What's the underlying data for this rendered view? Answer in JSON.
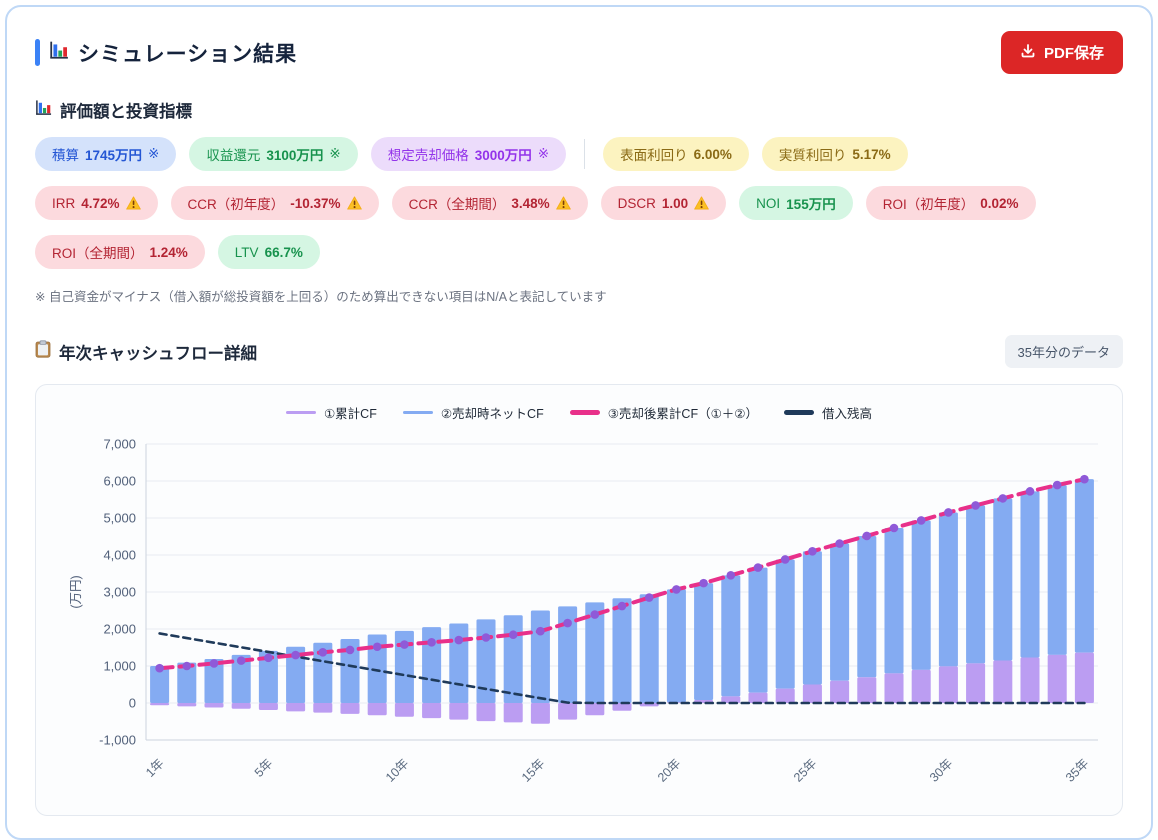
{
  "header": {
    "title": "シミュレーション結果",
    "pdf_button_label": "PDF保存"
  },
  "metrics": {
    "heading": "評価額と投資指標",
    "row1_left": [
      {
        "label": "積算",
        "value": "1745万円",
        "suffix": "※",
        "color": "blue"
      },
      {
        "label": "収益還元",
        "value": "3100万円",
        "suffix": "※",
        "color": "green"
      },
      {
        "label": "想定売却価格",
        "value": "3000万円",
        "suffix": "※",
        "color": "purple"
      }
    ],
    "row1_right": [
      {
        "label": "表面利回り",
        "value": "6.00%",
        "color": "yellow"
      },
      {
        "label": "実質利回り",
        "value": "5.17%",
        "color": "yellow"
      }
    ],
    "row2": [
      {
        "label": "IRR",
        "value": "4.72%",
        "warn": true,
        "color": "red"
      },
      {
        "label": "CCR（初年度）",
        "value": "-10.37%",
        "warn": true,
        "color": "red"
      },
      {
        "label": "CCR（全期間）",
        "value": "3.48%",
        "warn": true,
        "color": "red"
      },
      {
        "label": "DSCR",
        "value": "1.00",
        "warn": true,
        "color": "red"
      },
      {
        "label": "NOI",
        "value": "155万円",
        "color": "green"
      },
      {
        "label": "ROI（初年度）",
        "value": "0.02%",
        "color": "red"
      }
    ],
    "row3": [
      {
        "label": "ROI（全期間）",
        "value": "1.24%",
        "color": "red"
      },
      {
        "label": "LTV",
        "value": "66.7%",
        "color": "green"
      }
    ],
    "note": "※ 自己資金がマイナス（借入額が総投資額を上回る）のため算出できない項目はN/Aと表記しています"
  },
  "cashflow": {
    "heading": "年次キャッシュフロー詳細",
    "chip": "35年分のデータ"
  },
  "chart_data": {
    "type": "bar",
    "subtype": "stacked-bars-with-lines",
    "unit_label": "(万円)",
    "years": 35,
    "ylim": [
      -1000,
      7000
    ],
    "y_ticks": [
      -1000,
      0,
      1000,
      2000,
      3000,
      4000,
      5000,
      6000,
      7000
    ],
    "x_tick_years": [
      1,
      5,
      10,
      15,
      20,
      25,
      30,
      35
    ],
    "x_tick_labels": [
      "1年",
      "5年",
      "10年",
      "15年",
      "20年",
      "25年",
      "30年",
      "35年"
    ],
    "grid": true,
    "legend_position": "top",
    "series": [
      {
        "name": "①累計CF",
        "type": "bar",
        "color": "#bb9df2",
        "values": [
          -60,
          -90,
          -120,
          -155,
          -190,
          -225,
          -260,
          -295,
          -330,
          -370,
          -410,
          -450,
          -490,
          -525,
          -560,
          -450,
          -330,
          -210,
          -90,
          20,
          80,
          180,
          280,
          390,
          500,
          600,
          695,
          800,
          895,
          990,
          1070,
          1150,
          1230,
          1300,
          1360
        ]
      },
      {
        "name": "②売却時ネットCF",
        "type": "bar",
        "color": "#84abf2",
        "values": [
          1000,
          1090,
          1190,
          1300,
          1410,
          1520,
          1630,
          1730,
          1850,
          1950,
          2050,
          2150,
          2260,
          2370,
          2500,
          2610,
          2720,
          2830,
          2940,
          3050,
          3160,
          3270,
          3380,
          3490,
          3600,
          3710,
          3820,
          3930,
          4040,
          4160,
          4270,
          4380,
          4490,
          4590,
          4690
        ]
      },
      {
        "name": "③売却後累計CF（①＋②）",
        "type": "line",
        "color": "#e8308a",
        "point_color": "#8f5ad8",
        "dashed": true,
        "values": [
          940,
          1000,
          1070,
          1145,
          1220,
          1295,
          1370,
          1435,
          1520,
          1580,
          1640,
          1700,
          1770,
          1845,
          1940,
          2160,
          2390,
          2620,
          2850,
          3070,
          3240,
          3450,
          3660,
          3880,
          4100,
          4310,
          4515,
          4730,
          4935,
          5150,
          5340,
          5530,
          5720,
          5890,
          6050
        ]
      },
      {
        "name": "借入残高",
        "type": "line",
        "color": "#1f3a5a",
        "dashed": true,
        "values": [
          1880,
          1755,
          1630,
          1505,
          1380,
          1255,
          1130,
          1005,
          880,
          755,
          630,
          505,
          380,
          255,
          130,
          10,
          0,
          0,
          0,
          0,
          0,
          0,
          0,
          0,
          0,
          0,
          0,
          0,
          0,
          0,
          0,
          0,
          0,
          0,
          0
        ]
      }
    ]
  }
}
